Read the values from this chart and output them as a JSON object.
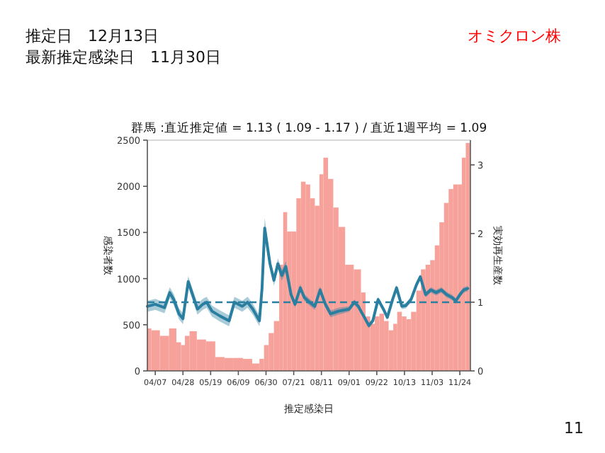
{
  "chart_data": {
    "type": "bar",
    "title": "群馬 :直近推定値 = 1.13 ( 1.09 - 1.17 ) / 直近1週平均 = 1.09",
    "xlabel": "推定感染日",
    "ylabel": "感染者数",
    "y2label": "実効再生産数",
    "annotations": [
      "推定日　12月13日",
      "最新推定感染日　11月30日",
      "オミクロン株",
      "11"
    ],
    "xlim": [
      "--04-01",
      "--12-02"
    ],
    "xticks": [
      {
        "value": "--04-07",
        "label": "04/07"
      },
      {
        "value": "--04-28",
        "label": "04/28"
      },
      {
        "value": "--05-19",
        "label": "05/19"
      },
      {
        "value": "--06-09",
        "label": "06/09"
      },
      {
        "value": "--06-30",
        "label": "06/30"
      },
      {
        "value": "--07-21",
        "label": "07/21"
      },
      {
        "value": "--08-11",
        "label": "08/11"
      },
      {
        "value": "--09-01",
        "label": "09/01"
      },
      {
        "value": "--09-22",
        "label": "09/22"
      },
      {
        "value": "--10-13",
        "label": "10/13"
      },
      {
        "value": "--11-03",
        "label": "11/03"
      },
      {
        "value": "--11-24",
        "label": "11/24"
      }
    ],
    "ylim": [
      0,
      2500
    ],
    "yticks": [
      0,
      500,
      1000,
      1500,
      2000,
      2500
    ],
    "y2lim": [
      0,
      3.36
    ],
    "y2ticks": [
      0,
      1,
      2,
      3
    ],
    "grid": false,
    "ref_lines": [
      {
        "axis": "y2",
        "value": 1,
        "color": "#2a7fa0",
        "line_style": "dashed"
      }
    ],
    "series": [
      {
        "color": "#f7a19b",
        "x": [
          "--04-01",
          "--04-07",
          "--04-14",
          "--04-21",
          "--04-25",
          "--04-28",
          "--05-01",
          "--05-05",
          "--05-12",
          "--05-19",
          "--05-26",
          "--06-02",
          "--06-09",
          "--06-16",
          "--06-23",
          "--06-27",
          "--06-30",
          "--07-04",
          "--07-08",
          "--07-12",
          "--07-14",
          "--07-18",
          "--07-21",
          "--07-25",
          "--07-28",
          "--08-01",
          "--08-04",
          "--08-08",
          "--08-11",
          "--08-14",
          "--08-18",
          "--08-22",
          "--08-26",
          "--09-01",
          "--09-08",
          "--09-12",
          "--09-15",
          "--09-19",
          "--09-22",
          "--09-26",
          "--09-29",
          "--10-03",
          "--10-06",
          "--10-09",
          "--10-13",
          "--10-16",
          "--10-20",
          "--10-24",
          "--10-27",
          "--10-31",
          "--11-03",
          "--11-07",
          "--11-10",
          "--11-14",
          "--11-17",
          "--11-21",
          "--11-24",
          "--11-27",
          "--11-30"
        ],
        "values": [
          460,
          440,
          380,
          460,
          310,
          280,
          380,
          430,
          340,
          320,
          150,
          140,
          140,
          130,
          80,
          130,
          280,
          410,
          540,
          1150,
          1720,
          1510,
          1510,
          1870,
          2050,
          2020,
          1870,
          1790,
          2130,
          2310,
          2080,
          1770,
          1560,
          1150,
          1100,
          850,
          590,
          510,
          590,
          620,
          540,
          440,
          510,
          640,
          590,
          560,
          640,
          870,
          1100,
          1150,
          1200,
          1360,
          1610,
          1820,
          1970,
          2020,
          2020,
          2310,
          2470
        ]
      },
      {
        "type": "line",
        "axis": "y2",
        "color": "#2a7fa0",
        "x": [
          "--04-01",
          "--04-07",
          "--04-14",
          "--04-18",
          "--04-21",
          "--04-25",
          "--04-28",
          "--05-02",
          "--05-06",
          "--05-09",
          "--05-13",
          "--05-16",
          "--05-20",
          "--05-26",
          "--06-02",
          "--06-06",
          "--06-12",
          "--06-16",
          "--06-20",
          "--06-25",
          "--06-27",
          "--06-29",
          "--07-03",
          "--07-06",
          "--07-09",
          "--07-12",
          "--07-15",
          "--07-19",
          "--07-22",
          "--07-26",
          "--07-29",
          "--08-02",
          "--08-06",
          "--08-10",
          "--08-14",
          "--08-18",
          "--08-24",
          "--09-01",
          "--09-05",
          "--09-08",
          "--09-12",
          "--09-16",
          "--09-19",
          "--09-23",
          "--09-27",
          "--09-30",
          "--10-04",
          "--10-07",
          "--10-11",
          "--10-14",
          "--10-18",
          "--10-22",
          "--10-25",
          "--10-29",
          "--11-02",
          "--11-06",
          "--11-10",
          "--11-14",
          "--11-18",
          "--11-21",
          "--11-24",
          "--11-27",
          "--11-30"
        ],
        "values": [
          0.94,
          0.97,
          0.92,
          1.14,
          1.04,
          0.83,
          0.76,
          1.3,
          1.07,
          0.9,
          0.97,
          1.0,
          0.87,
          0.8,
          0.73,
          1.0,
          0.94,
          1.0,
          0.9,
          0.73,
          1.21,
          2.08,
          1.56,
          1.32,
          1.56,
          1.39,
          1.52,
          1.11,
          0.97,
          1.21,
          1.07,
          1.0,
          0.94,
          1.18,
          0.97,
          0.83,
          0.87,
          0.9,
          1.0,
          0.94,
          0.8,
          0.66,
          0.73,
          1.04,
          0.9,
          0.78,
          1.04,
          1.21,
          0.94,
          0.95,
          1.04,
          1.25,
          1.37,
          1.11,
          1.18,
          1.14,
          1.18,
          1.11,
          1.07,
          1.02,
          1.11,
          1.18,
          1.2
        ],
        "lower": [
          0.86,
          0.89,
          0.84,
          1.06,
          0.96,
          0.75,
          0.68,
          1.22,
          0.99,
          0.82,
          0.89,
          0.92,
          0.79,
          0.72,
          0.65,
          0.92,
          0.86,
          0.92,
          0.82,
          0.65,
          1.11,
          1.93,
          1.48,
          1.24,
          1.48,
          1.31,
          1.44,
          1.06,
          0.92,
          1.16,
          1.02,
          0.95,
          0.89,
          1.13,
          0.92,
          0.78,
          0.82,
          0.86,
          0.96,
          0.9,
          0.76,
          0.62,
          0.69,
          1.0,
          0.86,
          0.74,
          1.0,
          1.17,
          0.9,
          0.91,
          1.0,
          1.21,
          1.33,
          1.07,
          1.14,
          1.1,
          1.14,
          1.07,
          1.03,
          0.98,
          1.07,
          1.14,
          1.16
        ],
        "upper": [
          1.02,
          1.05,
          1.0,
          1.22,
          1.12,
          0.91,
          0.84,
          1.38,
          1.15,
          0.98,
          1.05,
          1.08,
          0.95,
          0.88,
          0.81,
          1.08,
          1.02,
          1.08,
          0.98,
          0.81,
          1.31,
          2.23,
          1.64,
          1.4,
          1.64,
          1.47,
          1.6,
          1.16,
          1.02,
          1.26,
          1.12,
          1.05,
          0.99,
          1.23,
          1.02,
          0.88,
          0.92,
          0.94,
          1.04,
          0.98,
          0.84,
          0.7,
          0.77,
          1.08,
          0.94,
          0.82,
          1.08,
          1.25,
          0.98,
          0.99,
          1.08,
          1.29,
          1.41,
          1.15,
          1.22,
          1.18,
          1.22,
          1.15,
          1.11,
          1.06,
          1.15,
          1.22,
          1.24
        ]
      }
    ]
  }
}
